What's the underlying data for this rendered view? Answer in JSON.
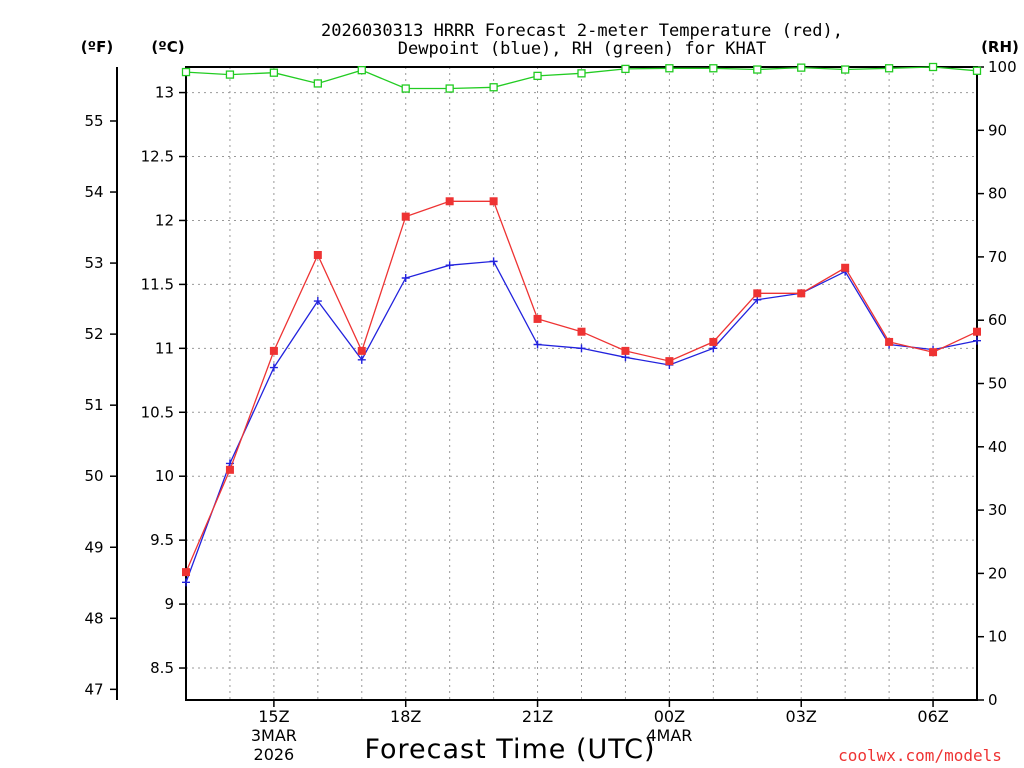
{
  "chart_data": {
    "type": "line",
    "title_line1": "2026030313 HRRR Forecast 2-meter Temperature (red),",
    "title_line2": "Dewpoint (blue), RH (green) for KHAT",
    "xlabel": "Forecast Time (UTC)",
    "units": {
      "fahrenheit": "(ºF)",
      "celsius": "(ºC)",
      "rh": "(RH)"
    },
    "credit": "coolwx.com/models",
    "x_hours": [
      13,
      14,
      15,
      16,
      17,
      18,
      19,
      20,
      21,
      22,
      23,
      24,
      25,
      26,
      27,
      28,
      29,
      30,
      31
    ],
    "x_ticks": [
      {
        "hour": 15,
        "label": "15Z",
        "sub1": "3MAR",
        "sub2": "2026"
      },
      {
        "hour": 18,
        "label": "18Z",
        "sub1": "",
        "sub2": ""
      },
      {
        "hour": 21,
        "label": "21Z",
        "sub1": "",
        "sub2": ""
      },
      {
        "hour": 24,
        "label": "00Z",
        "sub1": "4MAR",
        "sub2": ""
      },
      {
        "hour": 27,
        "label": "03Z",
        "sub1": "",
        "sub2": ""
      },
      {
        "hour": 30,
        "label": "06Z",
        "sub1": "",
        "sub2": ""
      }
    ],
    "xlim": [
      13,
      31
    ],
    "celsius_axis": {
      "range": [
        8.25,
        13.2
      ],
      "ticks": [
        "8.5",
        "9",
        "9.5",
        "10",
        "10.5",
        "11",
        "11.5",
        "12",
        "12.5",
        "13"
      ]
    },
    "fahrenheit_axis": {
      "ticks": [
        "47",
        "48",
        "49",
        "50",
        "51",
        "52",
        "53",
        "54",
        "55"
      ]
    },
    "rh_axis": {
      "range": [
        0,
        100
      ],
      "ticks": [
        "0",
        "10",
        "20",
        "30",
        "40",
        "50",
        "60",
        "70",
        "80",
        "90",
        "100"
      ]
    },
    "series": [
      {
        "name": "Temperature",
        "color": "#ee3333",
        "marker": "square-filled",
        "axis": "celsius",
        "values": [
          9.25,
          10.05,
          10.98,
          11.73,
          10.98,
          12.03,
          12.15,
          12.15,
          11.23,
          11.13,
          10.98,
          10.9,
          11.05,
          11.43,
          11.43,
          11.63,
          11.05,
          10.97,
          11.13
        ]
      },
      {
        "name": "Dewpoint",
        "color": "#2222dd",
        "marker": "plus",
        "axis": "celsius",
        "values": [
          9.17,
          10.1,
          10.85,
          11.37,
          10.91,
          11.55,
          11.65,
          11.68,
          11.03,
          11.0,
          10.93,
          10.87,
          11.0,
          11.38,
          11.43,
          11.6,
          11.03,
          10.99,
          11.06
        ]
      },
      {
        "name": "RH",
        "color": "#22cc22",
        "marker": "square-open",
        "axis": "rh",
        "values": [
          99.2,
          98.8,
          99.1,
          97.4,
          99.5,
          96.6,
          96.6,
          96.8,
          98.6,
          99.0,
          99.7,
          99.8,
          99.8,
          99.6,
          99.9,
          99.6,
          99.8,
          100.0,
          99.4
        ]
      }
    ]
  }
}
